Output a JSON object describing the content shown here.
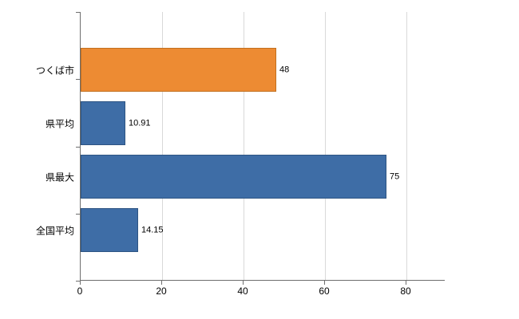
{
  "chart_data": {
    "type": "bar",
    "orientation": "horizontal",
    "title": "",
    "xlabel": "",
    "ylabel": "",
    "categories": [
      "つくば市",
      "県平均",
      "県最大",
      "全国平均"
    ],
    "values": [
      48,
      10.91,
      75,
      14.15
    ],
    "value_labels": [
      "48",
      "10.91",
      "75",
      "14.15"
    ],
    "bar_colors": [
      "#ed8b33",
      "#3e6da6",
      "#3e6da6",
      "#3e6da6"
    ],
    "bar_border_colors": [
      "#c2701f",
      "#2d5483",
      "#2d5483",
      "#2d5483"
    ],
    "x_ticks": [
      0,
      20,
      40,
      60,
      80
    ],
    "x_tick_labels": [
      "0",
      "20",
      "40",
      "60",
      "80"
    ],
    "xlim": [
      0,
      89.6
    ],
    "grid": "vertical-only",
    "gridline_color": "#d9d9d9",
    "axis_color": "#6e6e6e",
    "legend": "none",
    "background_color": "#ffffff"
  }
}
